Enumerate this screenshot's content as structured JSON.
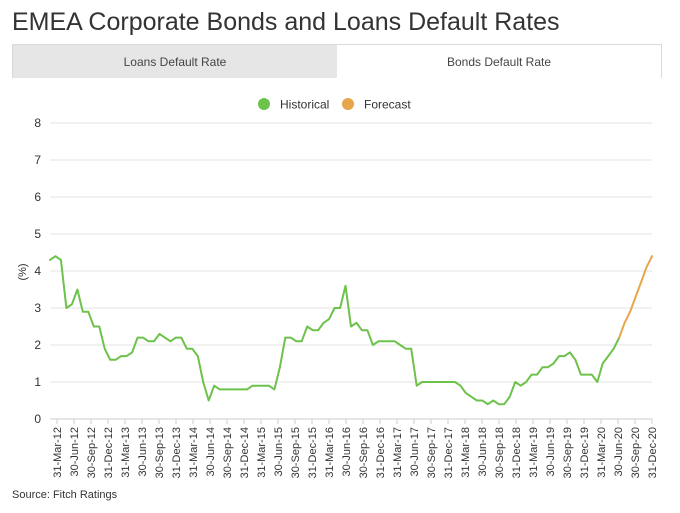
{
  "page": {
    "title": "EMEA Corporate Bonds and Loans Default Rates",
    "source": "Source: Fitch Ratings"
  },
  "tabs": [
    {
      "label": "Loans Default Rate",
      "active": false
    },
    {
      "label": "Bonds Default Rate",
      "active": true
    }
  ],
  "colors": {
    "historical": "#6cc24a",
    "forecast": "#e8a54b",
    "grid": "#e3e3e3",
    "text": "#333333"
  },
  "chart_data": {
    "type": "line",
    "title": "",
    "xlabel": "",
    "ylabel": "(%)",
    "ylim": [
      0,
      8
    ],
    "yticks": [
      0,
      1,
      2,
      3,
      4,
      5,
      6,
      7,
      8
    ],
    "grid": true,
    "legend_position": "top-center",
    "x_tick_labels": [
      "31-Mar-12",
      "30-Jun-12",
      "30-Sep-12",
      "31-Dec-12",
      "31-Mar-13",
      "30-Jun-13",
      "30-Sep-13",
      "31-Dec-13",
      "31-Mar-14",
      "30-Jun-14",
      "30-Sep-14",
      "31-Dec-14",
      "31-Mar-15",
      "30-Jun-15",
      "30-Sep-15",
      "31-Dec-15",
      "31-Mar-16",
      "30-Jun-16",
      "30-Sep-16",
      "31-Dec-16",
      "31-Mar-17",
      "30-Jun-17",
      "30-Sep-17",
      "31-Dec-17",
      "31-Mar-18",
      "30-Jun-18",
      "30-Sep-18",
      "31-Dec-18",
      "31-Mar-19",
      "30-Jun-19",
      "30-Sep-19",
      "31-Dec-19",
      "31-Mar-20",
      "30-Jun-20",
      "30-Sep-20",
      "31-Dec-20"
    ],
    "series": [
      {
        "name": "Historical",
        "values": [
          4.3,
          4.4,
          4.3,
          3.0,
          3.1,
          3.5,
          2.9,
          2.9,
          2.5,
          2.5,
          1.9,
          1.6,
          1.6,
          1.7,
          1.7,
          1.8,
          2.2,
          2.2,
          2.1,
          2.1,
          2.3,
          2.2,
          2.1,
          2.2,
          2.2,
          1.9,
          1.9,
          1.7,
          1.0,
          0.5,
          0.9,
          0.8,
          0.8,
          0.8,
          0.8,
          0.8,
          0.8,
          0.9,
          0.9,
          0.9,
          0.9,
          0.8,
          1.4,
          2.2,
          2.2,
          2.1,
          2.1,
          2.5,
          2.4,
          2.4,
          2.6,
          2.7,
          3.0,
          3.0,
          3.6,
          2.5,
          2.6,
          2.4,
          2.4,
          2.0,
          2.1,
          2.1,
          2.1,
          2.1,
          2.0,
          1.9,
          1.9,
          0.9,
          1.0,
          1.0,
          1.0,
          1.0,
          1.0,
          1.0,
          1.0,
          0.9,
          0.7,
          0.6,
          0.5,
          0.5,
          0.4,
          0.5,
          0.4,
          0.4,
          0.6,
          1.0,
          0.9,
          1.0,
          1.2,
          1.2,
          1.4,
          1.4,
          1.5,
          1.7,
          1.7,
          1.8,
          1.6,
          1.2,
          1.2,
          1.2,
          1.0,
          1.5,
          1.7,
          1.9,
          2.2
        ]
      },
      {
        "name": "Forecast",
        "values": [
          2.2,
          2.6,
          2.9,
          3.3,
          3.7,
          4.1,
          4.4
        ]
      }
    ]
  }
}
